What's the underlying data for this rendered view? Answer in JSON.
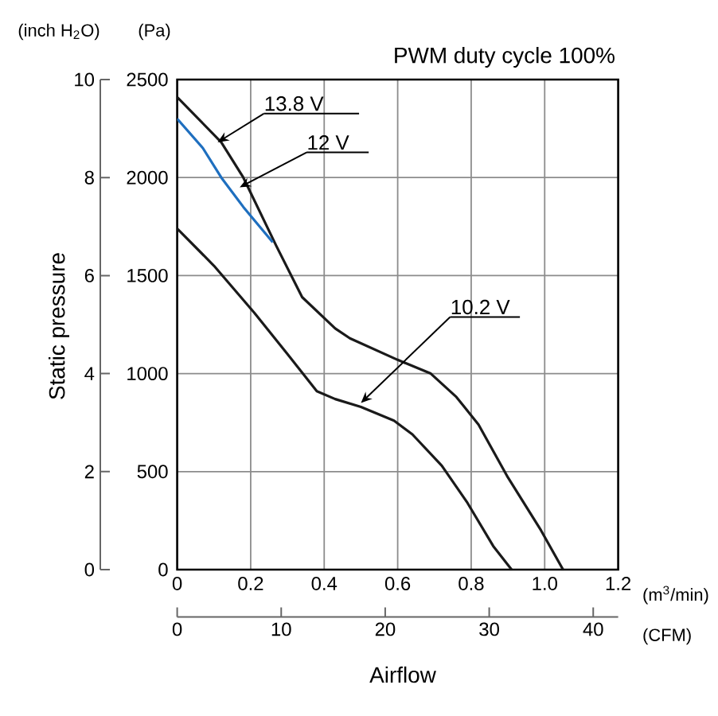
{
  "chart_data": {
    "type": "line",
    "title": "PWM duty cycle 100%",
    "xlabel": "Airflow",
    "y2label": "Static pressure",
    "x2label": "(CFM)",
    "xlim": [
      0,
      1.2
    ],
    "xticks": [
      0,
      0.2,
      0.4,
      0.6,
      0.8,
      {
        "value": 1.0,
        "label": "1.0"
      },
      1.2
    ],
    "ylim": [
      0,
      2500
    ],
    "yticks": [
      0,
      500,
      1000,
      1500,
      2000,
      2500
    ],
    "y2lim": [
      0,
      10
    ],
    "y2ticks": [
      0,
      2,
      4,
      6,
      8,
      10
    ],
    "x2lim": [
      0,
      42.4
    ],
    "x2ticks": [
      0,
      10,
      20,
      30,
      40
    ],
    "grid": true,
    "series": [
      {
        "color": "#1a1a1a",
        "x": [
          0,
          0.12,
          0.18,
          0.27,
          0.34,
          0.43,
          0.47,
          0.6,
          0.69,
          0.76,
          0.82,
          0.9,
          0.99,
          1.05
        ],
        "values": [
          2410,
          2180,
          2000,
          1650,
          1390,
          1230,
          1180,
          1070,
          1000,
          880,
          740,
          470,
          200,
          0
        ]
      },
      {
        "color": "#1f6fbf",
        "x": [
          0,
          0.07,
          0.12,
          0.18,
          0.26
        ],
        "values": [
          2300,
          2150,
          2000,
          1850,
          1670
        ]
      },
      {
        "color": "#1a1a1a",
        "x": [
          0,
          0.1,
          0.21,
          0.3,
          0.38,
          0.43,
          0.5,
          0.59,
          0.64,
          0.72,
          0.79,
          0.86,
          0.91
        ],
        "values": [
          1740,
          1550,
          1310,
          1100,
          910,
          870,
          830,
          760,
          690,
          530,
          340,
          120,
          0
        ]
      }
    ],
    "annotations": [
      {
        "text": "13.8 V",
        "x": 0.11,
        "y": 2180
      },
      {
        "text": "12 V",
        "x": 0.17,
        "y": 1950
      },
      {
        "text": "10.2 V",
        "x": 0.5,
        "y": 850
      },
      "(inch H$_{2}$O)",
      "(Pa)",
      "(m$^{3}$/min)"
    ]
  }
}
